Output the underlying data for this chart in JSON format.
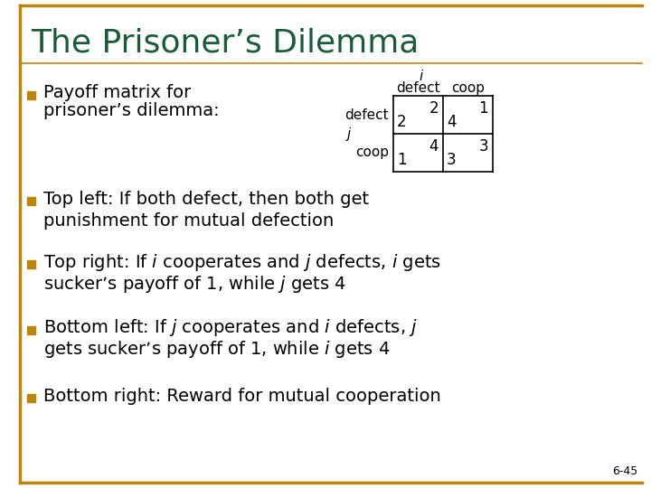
{
  "title": "The Prisoner’s Dilemma",
  "title_color": "#1a5c38",
  "background_color": "#ffffff",
  "border_color": "#b8860b",
  "bullet_color": "#b8860b",
  "text_color": "#000000",
  "slide_number": "6-45",
  "table": {
    "col_labels": [
      "defect",
      "coop"
    ],
    "row_labels": [
      "defect",
      "coop"
    ],
    "player_col": "i",
    "player_row": "j",
    "cells": [
      [
        [
          "2",
          "2"
        ],
        [
          "1",
          "4"
        ]
      ],
      [
        [
          "4",
          "1"
        ],
        [
          "3",
          "3"
        ]
      ]
    ]
  }
}
